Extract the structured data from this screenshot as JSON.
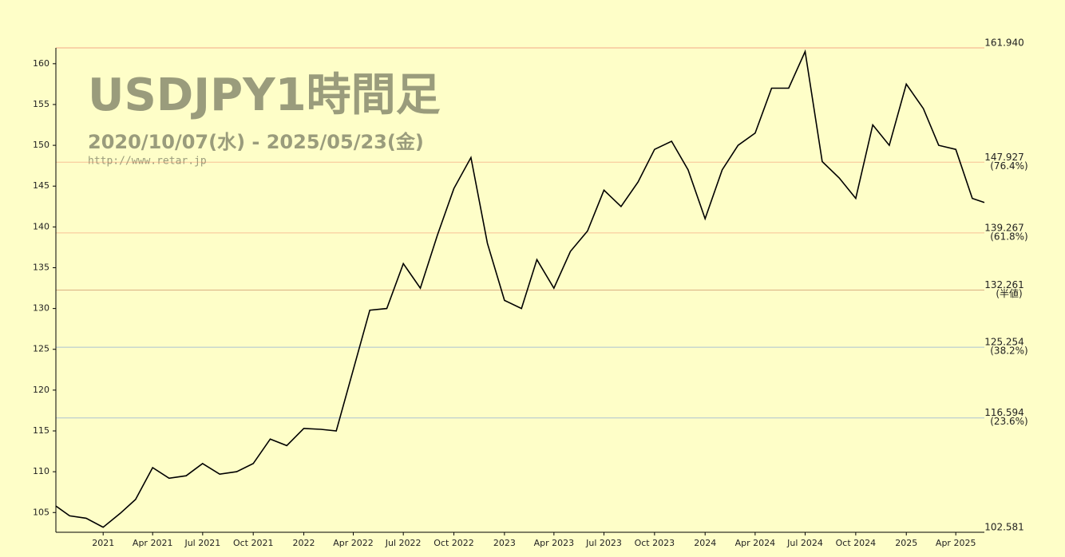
{
  "chart_data": {
    "type": "line",
    "title": "USDJPY1時間足",
    "subtitle": "2020/10/07(水) - 2025/05/23(金)",
    "source": "http://www.retar.jp",
    "color": "#000000",
    "x": [
      "2020-10-07",
      "2020-11",
      "2020-12",
      "2021-01",
      "2021-02",
      "2021-03",
      "2021-04",
      "2021-05",
      "2021-06",
      "2021-07",
      "2021-08",
      "2021-09",
      "2021-10",
      "2021-11",
      "2021-12",
      "2022-01",
      "2022-02",
      "2022-03",
      "2022-04",
      "2022-05",
      "2022-06",
      "2022-07",
      "2022-08",
      "2022-09",
      "2022-10",
      "2022-11",
      "2022-12",
      "2023-01",
      "2023-02",
      "2023-03",
      "2023-04",
      "2023-05",
      "2023-06",
      "2023-07",
      "2023-08",
      "2023-09",
      "2023-10",
      "2023-11",
      "2023-12",
      "2024-01",
      "2024-02",
      "2024-03",
      "2024-04",
      "2024-05",
      "2024-06",
      "2024-07",
      "2024-08",
      "2024-09",
      "2024-10",
      "2024-11",
      "2024-12",
      "2025-01",
      "2025-02",
      "2025-03",
      "2025-04",
      "2025-05",
      "2025-05-23"
    ],
    "values": [
      105.8,
      104.6,
      104.3,
      103.2,
      104.9,
      106.6,
      110.5,
      109.2,
      109.5,
      111.0,
      109.7,
      110.0,
      111.0,
      114.0,
      113.2,
      115.3,
      115.2,
      115.0,
      122.5,
      129.8,
      130.0,
      135.5,
      132.5,
      139.0,
      144.7,
      148.5,
      138.0,
      131.0,
      130.0,
      136.0,
      132.5,
      137.0,
      139.5,
      144.5,
      142.5,
      145.5,
      149.5,
      150.5,
      147.0,
      141.0,
      147.0,
      150.0,
      151.5,
      157.0,
      157.0,
      161.5,
      148.0,
      146.0,
      143.5,
      152.5,
      150.0,
      157.5,
      154.5,
      150.0,
      149.5,
      143.5,
      143.0
    ],
    "xlim": [
      "2020-10-07",
      "2025-05-23"
    ],
    "ylim": [
      102.581,
      161.94
    ],
    "yticks": [
      105,
      110,
      115,
      120,
      125,
      130,
      135,
      140,
      145,
      150,
      155,
      160
    ],
    "xticks": [
      {
        "value": "2021-01",
        "label": "2021"
      },
      {
        "value": "2021-04",
        "label": "Apr 2021"
      },
      {
        "value": "2021-07",
        "label": "Jul 2021"
      },
      {
        "value": "2021-10",
        "label": "Oct 2021"
      },
      {
        "value": "2022-01",
        "label": "2022"
      },
      {
        "value": "2022-04",
        "label": "Apr 2022"
      },
      {
        "value": "2022-07",
        "label": "Jul 2022"
      },
      {
        "value": "2022-10",
        "label": "Oct 2022"
      },
      {
        "value": "2023-01",
        "label": "2023"
      },
      {
        "value": "2023-04",
        "label": "Apr 2023"
      },
      {
        "value": "2023-07",
        "label": "Jul 2023"
      },
      {
        "value": "2023-10",
        "label": "Oct 2023"
      },
      {
        "value": "2024-01",
        "label": "2024"
      },
      {
        "value": "2024-04",
        "label": "Apr 2024"
      },
      {
        "value": "2024-07",
        "label": "Jul 2024"
      },
      {
        "value": "2024-10",
        "label": "Oct 2024"
      },
      {
        "value": "2025-01",
        "label": "2025"
      },
      {
        "value": "2025-04",
        "label": "Apr 2025"
      }
    ],
    "levels": [
      {
        "value": 161.94,
        "label": "161.940",
        "color": "#e8413c"
      },
      {
        "value": 147.927,
        "label": "147.927",
        "note": "(76.4%)",
        "color": "#f07a5a"
      },
      {
        "value": 139.267,
        "label": "139.267",
        "note": "(61.8%)",
        "color": "#f07a5a"
      },
      {
        "value": 132.261,
        "label": "132.261",
        "note": "(半値)",
        "color": "#b0502c"
      },
      {
        "value": 125.254,
        "label": "125.254",
        "note": "(38.2%)",
        "color": "#4a7ae0"
      },
      {
        "value": 116.594,
        "label": "116.594",
        "note": "(23.6%)",
        "color": "#4a7ae0"
      },
      {
        "value": 102.581,
        "label": "102.581",
        "color": "#1a1ad0"
      }
    ]
  }
}
